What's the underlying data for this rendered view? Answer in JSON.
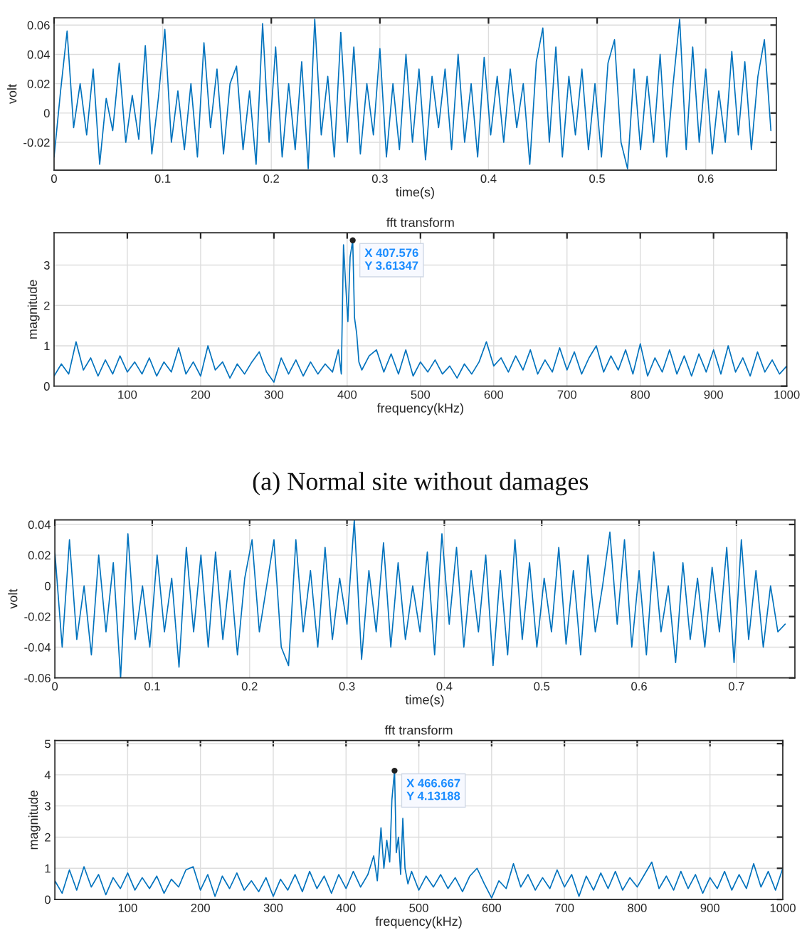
{
  "chart_data": [
    {
      "type": "line",
      "xlabel": "time(s)",
      "ylabel": "volt",
      "grid": true,
      "xlim": [
        0,
        0.665
      ],
      "ylim": [
        -0.039,
        0.065
      ],
      "xticks": [
        0,
        0.1,
        0.2,
        0.3,
        0.4,
        0.5,
        0.6
      ],
      "yticks": [
        -0.02,
        0,
        0.02,
        0.04,
        0.06
      ],
      "series": [
        {
          "color": "#0072bd",
          "x": [
            0,
            0.006,
            0.012,
            0.018,
            0.024,
            0.03,
            0.036,
            0.042,
            0.048,
            0.054,
            0.06,
            0.066,
            0.072,
            0.078,
            0.084,
            0.09,
            0.096,
            0.102,
            0.108,
            0.114,
            0.12,
            0.126,
            0.132,
            0.138,
            0.144,
            0.15,
            0.156,
            0.162,
            0.168,
            0.174,
            0.18,
            0.186,
            0.192,
            0.198,
            0.204,
            0.21,
            0.216,
            0.222,
            0.228,
            0.234,
            0.24,
            0.246,
            0.252,
            0.258,
            0.264,
            0.27,
            0.276,
            0.282,
            0.288,
            0.294,
            0.3,
            0.306,
            0.312,
            0.318,
            0.324,
            0.33,
            0.336,
            0.342,
            0.348,
            0.354,
            0.36,
            0.366,
            0.372,
            0.378,
            0.384,
            0.39,
            0.396,
            0.402,
            0.408,
            0.414,
            0.42,
            0.426,
            0.432,
            0.438,
            0.444,
            0.45,
            0.456,
            0.462,
            0.468,
            0.474,
            0.48,
            0.486,
            0.492,
            0.498,
            0.504,
            0.51,
            0.516,
            0.522,
            0.528,
            0.534,
            0.54,
            0.546,
            0.552,
            0.558,
            0.564,
            0.57,
            0.576,
            0.582,
            0.588,
            0.594,
            0.6,
            0.606,
            0.612,
            0.618,
            0.624,
            0.63,
            0.636,
            0.642,
            0.648,
            0.654,
            0.66
          ],
          "values": [
            -0.03,
            0.015,
            0.056,
            -0.01,
            0.02,
            -0.015,
            0.03,
            -0.035,
            0.01,
            -0.012,
            0.034,
            -0.02,
            0.012,
            -0.018,
            0.046,
            -0.028,
            0.01,
            0.057,
            -0.02,
            0.015,
            -0.025,
            0.02,
            -0.03,
            0.048,
            -0.01,
            0.03,
            -0.028,
            0.02,
            0.032,
            -0.025,
            0.015,
            -0.035,
            0.061,
            -0.02,
            0.045,
            -0.03,
            0.02,
            -0.025,
            0.035,
            -0.038,
            0.064,
            -0.015,
            0.025,
            -0.03,
            0.055,
            -0.02,
            0.045,
            -0.028,
            0.02,
            -0.015,
            0.044,
            -0.03,
            0.02,
            -0.025,
            0.04,
            -0.02,
            0.03,
            -0.032,
            0.025,
            -0.01,
            0.03,
            -0.025,
            0.04,
            -0.02,
            0.02,
            -0.03,
            0.038,
            -0.015,
            0.025,
            -0.02,
            0.03,
            -0.01,
            0.02,
            -0.035,
            0.035,
            0.058,
            -0.02,
            0.045,
            -0.03,
            0.025,
            -0.015,
            0.03,
            -0.025,
            0.02,
            -0.03,
            0.034,
            0.05,
            -0.02,
            -0.038,
            0.03,
            -0.025,
            0.025,
            -0.02,
            0.04,
            -0.03,
            0.02,
            0.064,
            -0.025,
            0.045,
            -0.02,
            0.03,
            -0.028,
            0.015,
            -0.02,
            0.042,
            -0.015,
            0.035,
            -0.025,
            0.025,
            0.05,
            -0.012
          ]
        }
      ]
    },
    {
      "type": "line",
      "title": "fft transform",
      "xlabel": "frequency(kHz)",
      "ylabel": "magnitude",
      "grid": true,
      "xlim": [
        0,
        1000
      ],
      "ylim": [
        0,
        3.8
      ],
      "xticks": [
        100,
        200,
        300,
        400,
        500,
        600,
        700,
        800,
        900,
        1000
      ],
      "yticks": [
        0,
        1,
        2,
        3
      ],
      "annotations": [
        {
          "text": "X 407.576\nY 3.61347",
          "x": 407.576,
          "y": 3.61347
        },
        "(a) Normal site without damages"
      ],
      "series": [
        {
          "color": "#0072bd",
          "x": [
            0,
            10,
            20,
            30,
            40,
            50,
            60,
            70,
            80,
            90,
            100,
            110,
            120,
            130,
            140,
            150,
            160,
            170,
            180,
            190,
            200,
            210,
            220,
            230,
            240,
            250,
            260,
            270,
            280,
            290,
            300,
            310,
            320,
            330,
            340,
            350,
            360,
            370,
            380,
            388,
            392,
            395,
            398,
            401,
            404,
            407.576,
            410,
            413,
            416,
            420,
            430,
            440,
            450,
            460,
            470,
            480,
            490,
            500,
            510,
            520,
            530,
            540,
            550,
            560,
            570,
            580,
            590,
            600,
            610,
            620,
            630,
            640,
            650,
            660,
            670,
            680,
            690,
            700,
            710,
            720,
            730,
            740,
            750,
            760,
            770,
            780,
            790,
            800,
            810,
            820,
            830,
            840,
            850,
            860,
            870,
            880,
            890,
            900,
            910,
            920,
            930,
            940,
            950,
            960,
            970,
            980,
            990,
            1000
          ],
          "values": [
            0.25,
            0.55,
            0.3,
            1.1,
            0.4,
            0.7,
            0.25,
            0.65,
            0.3,
            0.75,
            0.35,
            0.6,
            0.3,
            0.7,
            0.25,
            0.6,
            0.35,
            0.95,
            0.3,
            0.6,
            0.25,
            1.0,
            0.4,
            0.6,
            0.2,
            0.55,
            0.3,
            0.6,
            0.85,
            0.35,
            0.1,
            0.7,
            0.3,
            0.65,
            0.25,
            0.6,
            0.3,
            0.55,
            0.35,
            0.9,
            0.3,
            3.5,
            2.5,
            1.6,
            3.2,
            3.61347,
            1.7,
            1.3,
            0.6,
            0.4,
            0.75,
            0.9,
            0.35,
            0.8,
            0.3,
            0.9,
            0.25,
            0.6,
            0.35,
            0.65,
            0.3,
            0.5,
            0.2,
            0.55,
            0.3,
            0.6,
            1.1,
            0.5,
            0.7,
            0.35,
            0.75,
            0.4,
            0.9,
            0.3,
            0.65,
            0.35,
            0.95,
            0.4,
            0.85,
            0.3,
            0.7,
            1.0,
            0.35,
            0.75,
            0.4,
            0.9,
            0.3,
            1.05,
            0.25,
            0.7,
            0.35,
            0.9,
            0.3,
            0.75,
            0.25,
            0.8,
            0.35,
            0.9,
            0.3,
            1.0,
            0.35,
            0.7,
            0.25,
            0.85,
            0.35,
            0.65,
            0.3,
            0.5
          ]
        }
      ]
    },
    {
      "type": "line",
      "xlabel": "time(s)",
      "ylabel": "volt",
      "grid": true,
      "xlim": [
        0,
        0.76
      ],
      "ylim": [
        -0.06,
        0.043
      ],
      "xticks": [
        0,
        0.1,
        0.2,
        0.3,
        0.4,
        0.5,
        0.6,
        0.7
      ],
      "yticks": [
        -0.06,
        -0.04,
        -0.02,
        0,
        0.02,
        0.04
      ],
      "series": [
        {
          "color": "#0072bd",
          "x": [
            0,
            0.0075,
            0.015,
            0.0225,
            0.03,
            0.0375,
            0.045,
            0.0525,
            0.06,
            0.0675,
            0.075,
            0.0825,
            0.09,
            0.0975,
            0.105,
            0.1125,
            0.12,
            0.1275,
            0.135,
            0.1425,
            0.15,
            0.1575,
            0.165,
            0.1725,
            0.18,
            0.1875,
            0.195,
            0.2025,
            0.21,
            0.2175,
            0.225,
            0.2325,
            0.24,
            0.2475,
            0.255,
            0.2625,
            0.27,
            0.2775,
            0.285,
            0.2925,
            0.3,
            0.3075,
            0.315,
            0.3225,
            0.33,
            0.3375,
            0.345,
            0.3525,
            0.36,
            0.3675,
            0.375,
            0.3825,
            0.39,
            0.3975,
            0.405,
            0.4125,
            0.42,
            0.4275,
            0.435,
            0.4425,
            0.45,
            0.4575,
            0.465,
            0.4725,
            0.48,
            0.4875,
            0.495,
            0.5025,
            0.51,
            0.5175,
            0.525,
            0.5325,
            0.54,
            0.5475,
            0.555,
            0.5625,
            0.57,
            0.5775,
            0.585,
            0.5925,
            0.6,
            0.6075,
            0.615,
            0.6225,
            0.63,
            0.6375,
            0.645,
            0.6525,
            0.66,
            0.6675,
            0.675,
            0.6825,
            0.69,
            0.6975,
            0.705,
            0.7125,
            0.72,
            0.7275,
            0.735,
            0.7425,
            0.75
          ],
          "values": [
            0.022,
            -0.04,
            0.03,
            -0.035,
            0.0,
            -0.045,
            0.02,
            -0.03,
            0.015,
            -0.06,
            0.034,
            -0.035,
            0.0,
            -0.04,
            0.02,
            -0.03,
            0.005,
            -0.053,
            0.025,
            -0.03,
            0.02,
            -0.04,
            0.022,
            -0.035,
            0.01,
            -0.045,
            0.005,
            0.03,
            -0.03,
            0.0,
            0.03,
            -0.04,
            -0.052,
            0.03,
            -0.03,
            0.01,
            -0.04,
            0.025,
            -0.035,
            0.005,
            -0.025,
            0.043,
            -0.048,
            0.01,
            -0.03,
            0.028,
            -0.04,
            0.015,
            -0.035,
            0.0,
            -0.03,
            0.022,
            -0.045,
            0.034,
            -0.025,
            0.025,
            -0.04,
            0.01,
            -0.03,
            0.02,
            -0.052,
            0.01,
            -0.045,
            0.03,
            -0.035,
            0.015,
            -0.04,
            0.005,
            -0.03,
            0.025,
            -0.038,
            0.01,
            -0.045,
            0.02,
            -0.03,
            0.0,
            0.035,
            -0.025,
            0.03,
            -0.04,
            0.01,
            -0.045,
            0.022,
            -0.03,
            0.0,
            -0.05,
            0.015,
            -0.035,
            0.005,
            -0.04,
            0.012,
            -0.03,
            0.025,
            -0.05,
            0.03,
            -0.035,
            0.01,
            -0.04,
            0.0,
            -0.03,
            -0.025
          ]
        }
      ]
    },
    {
      "type": "line",
      "title": "fft transform",
      "xlabel": "frequency(kHz)",
      "ylabel": "magnitude",
      "grid": true,
      "xlim": [
        0,
        1000
      ],
      "ylim": [
        0,
        5.1
      ],
      "xticks": [
        100,
        200,
        300,
        400,
        500,
        600,
        700,
        800,
        900,
        1000
      ],
      "yticks": [
        0,
        1,
        2,
        3,
        4,
        5
      ],
      "annotations": [
        {
          "text": "X 466.667\nY 4.13188",
          "x": 466.667,
          "y": 4.13188
        }
      ],
      "series": [
        {
          "color": "#0072bd",
          "x": [
            0,
            10,
            20,
            30,
            40,
            50,
            60,
            70,
            80,
            90,
            100,
            110,
            120,
            130,
            140,
            150,
            160,
            170,
            180,
            190,
            200,
            210,
            220,
            230,
            240,
            250,
            260,
            270,
            280,
            290,
            300,
            310,
            320,
            330,
            340,
            350,
            360,
            370,
            380,
            390,
            400,
            410,
            420,
            430,
            438,
            443,
            448,
            452,
            456,
            460,
            463,
            466.667,
            469,
            472,
            475,
            478,
            481,
            485,
            490,
            500,
            510,
            520,
            530,
            540,
            550,
            560,
            570,
            580,
            590,
            600,
            610,
            620,
            630,
            640,
            650,
            660,
            670,
            680,
            690,
            700,
            710,
            720,
            730,
            740,
            750,
            760,
            770,
            780,
            790,
            800,
            810,
            820,
            830,
            840,
            850,
            860,
            870,
            880,
            890,
            900,
            910,
            920,
            930,
            940,
            950,
            960,
            970,
            980,
            990,
            1000
          ],
          "values": [
            0.6,
            0.2,
            0.95,
            0.3,
            1.05,
            0.4,
            0.8,
            0.15,
            0.7,
            0.35,
            0.85,
            0.3,
            0.7,
            0.35,
            0.75,
            0.2,
            0.65,
            0.4,
            0.95,
            1.05,
            0.3,
            0.8,
            0.1,
            0.75,
            0.35,
            0.85,
            0.3,
            0.6,
            0.25,
            0.7,
            0.1,
            0.65,
            0.3,
            0.8,
            0.25,
            0.9,
            0.35,
            0.75,
            0.2,
            0.8,
            0.35,
            0.9,
            0.4,
            0.8,
            1.4,
            0.6,
            2.3,
            1.0,
            1.9,
            1.2,
            3.2,
            4.13188,
            1.5,
            2.0,
            0.8,
            2.6,
            1.0,
            0.5,
            0.9,
            0.3,
            0.75,
            0.4,
            0.8,
            0.35,
            0.7,
            0.25,
            0.75,
            1.0,
            0.5,
            0.05,
            0.6,
            0.35,
            1.15,
            0.4,
            0.8,
            0.3,
            0.7,
            0.35,
            0.95,
            0.4,
            0.8,
            0.1,
            0.75,
            0.3,
            0.85,
            0.35,
            0.9,
            0.3,
            0.7,
            0.4,
            0.8,
            1.2,
            0.35,
            0.75,
            0.3,
            0.9,
            0.35,
            0.8,
            0.2,
            0.7,
            0.35,
            0.9,
            0.3,
            0.8,
            0.35,
            1.15,
            0.4,
            0.9,
            0.3,
            1.0
          ]
        }
      ]
    }
  ]
}
